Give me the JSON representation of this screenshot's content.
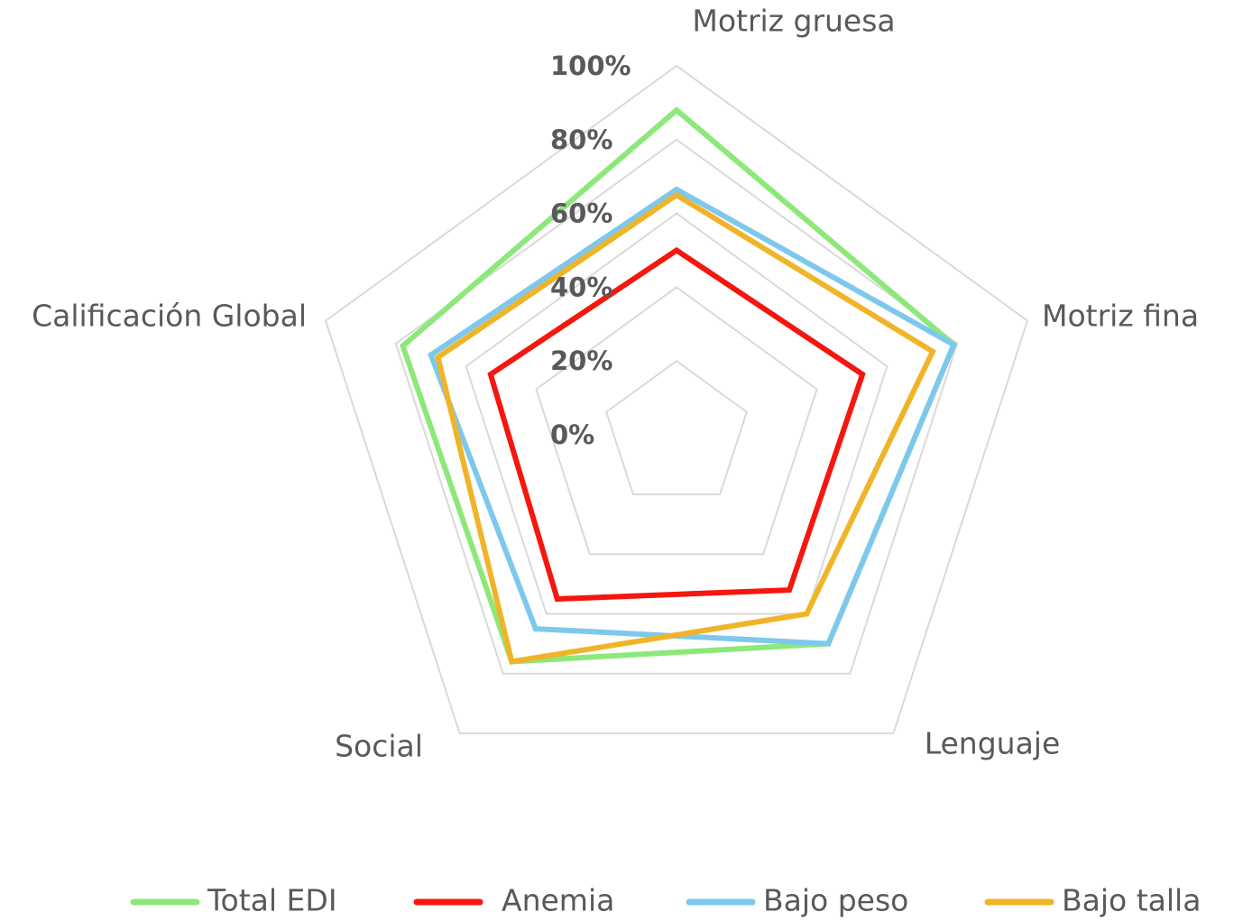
{
  "chart_data": {
    "type": "radar",
    "categories": [
      "Motriz gruesa",
      "Motriz fina",
      "Lenguaje",
      "Social",
      "Calificación Global"
    ],
    "series": [
      {
        "name": "Total EDI",
        "color": "#8de87a",
        "values": [
          88,
          79,
          70,
          76,
          78
        ]
      },
      {
        "name": "Anemia",
        "color": "#f5170f",
        "values": [
          50,
          53,
          52,
          55,
          53
        ]
      },
      {
        "name": "Bajo peso",
        "color": "#7ec8ec",
        "values": [
          66.5,
          79,
          70,
          65,
          70
        ]
      },
      {
        "name": "Bajo talla",
        "color": "#f0b429",
        "values": [
          65,
          73,
          60,
          76,
          68
        ]
      }
    ],
    "rlim": [
      0,
      100
    ],
    "rticks": [
      {
        "value": 0,
        "label": "0%"
      },
      {
        "value": 20,
        "label": "20%"
      },
      {
        "value": 40,
        "label": "40%"
      },
      {
        "value": 60,
        "label": "60%"
      },
      {
        "value": 80,
        "label": "80%"
      },
      {
        "value": 100,
        "label": "100%"
      }
    ],
    "grid": true,
    "legend": "bottom"
  }
}
